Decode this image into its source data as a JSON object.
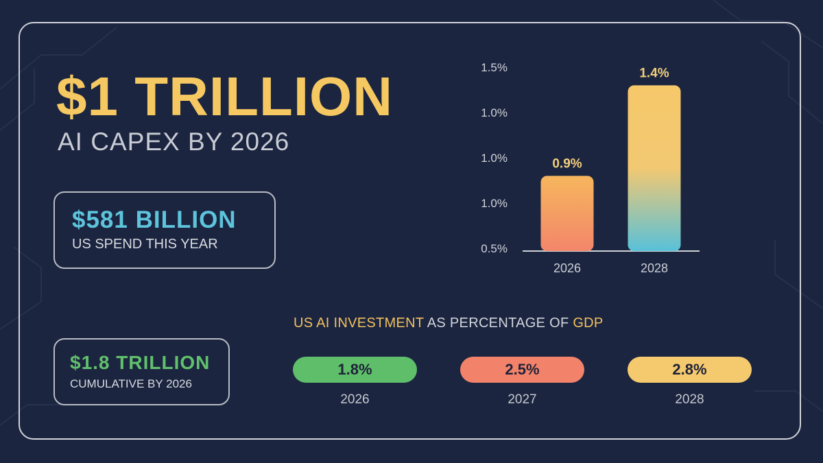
{
  "headline": {
    "amount": "$1 TRILLION",
    "subtitle": "AI CAPEX BY 2026"
  },
  "stats": [
    {
      "value": "$581 BILLION",
      "label": "US SPEND THIS YEAR",
      "color": "#5ec4dc"
    },
    {
      "value": "$1.8 TRILLION",
      "label": "CUMULATIVE BY 2026",
      "color": "#62c06c"
    }
  ],
  "chart_data": {
    "type": "bar",
    "title": "",
    "xlabel": "",
    "ylabel": "",
    "categories": [
      "2026",
      "2028"
    ],
    "values": [
      0.9,
      1.4
    ],
    "data_labels": [
      "0.9%",
      "1.4%"
    ],
    "y_tick_labels": [
      "0.5%",
      "1.0%",
      "1.0%",
      "1.0%",
      "1.5%"
    ],
    "ylim": [
      0.5,
      1.5
    ],
    "grid": false,
    "bar_gradients": [
      [
        "#f6b65d",
        "#f3866a"
      ],
      [
        "#f6c86a",
        "#f2c872",
        "#58c1d9"
      ]
    ]
  },
  "gdp": {
    "title_parts": [
      {
        "text": "US AI INVESTMENT",
        "highlight": true
      },
      {
        "text": " AS PERCENTAGE OF ",
        "highlight": false
      },
      {
        "text": "GDP",
        "highlight": true
      }
    ],
    "items": [
      {
        "value": "1.8%",
        "year": "2026",
        "color": "#5fbe6a"
      },
      {
        "value": "2.5%",
        "year": "2027",
        "color": "#f2826a"
      },
      {
        "value": "2.8%",
        "year": "2028",
        "color": "#f5ca6e"
      }
    ]
  }
}
